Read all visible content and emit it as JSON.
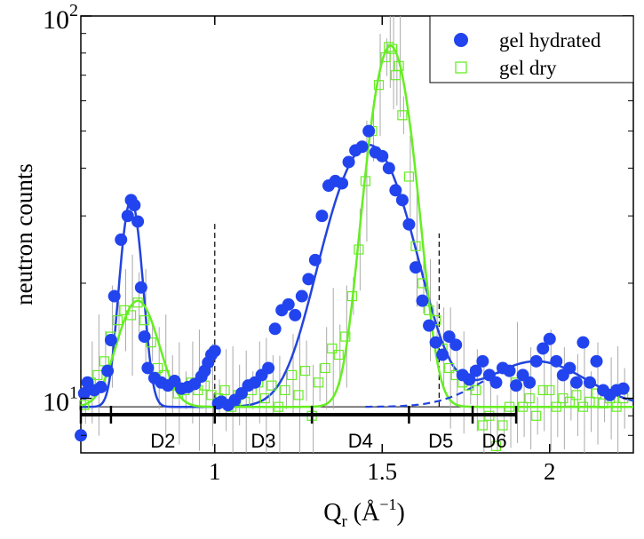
{
  "chart_data": {
    "type": "scatter",
    "title": "",
    "xlabel": "Q",
    "xlabel_sub": "r",
    "xlabel_unit_open": " (Å",
    "xlabel_unit_exp": "−1",
    "xlabel_unit_close": ")",
    "ylabel": "neutron counts",
    "x_scale": "linear",
    "y_scale": "log",
    "xlim": [
      0.6,
      2.25
    ],
    "ylim": [
      7.2,
      100
    ],
    "x_ticks": [
      {
        "value": 1,
        "label": "1"
      },
      {
        "value": 1.5,
        "label": "1.5"
      },
      {
        "value": 2,
        "label": "2"
      }
    ],
    "y_ticks": [
      {
        "value": 10,
        "base": "10",
        "exp": "1"
      },
      {
        "value": 100,
        "base": "10",
        "exp": "2"
      }
    ],
    "legend_position": "top-right",
    "series": [
      {
        "name": "gel hydrated",
        "marker": "filled-circle",
        "color": "#2244ee",
        "points": [
          [
            0.6,
            8.0
          ],
          [
            0.61,
            10.3
          ],
          [
            0.62,
            11.0
          ],
          [
            0.64,
            10.5
          ],
          [
            0.66,
            10.7
          ],
          [
            0.68,
            11.8
          ],
          [
            0.69,
            14.2
          ],
          [
            0.7,
            18.5
          ],
          [
            0.72,
            26.0
          ],
          [
            0.74,
            30.0
          ],
          [
            0.75,
            33.0
          ],
          [
            0.76,
            32.0
          ],
          [
            0.77,
            29.0
          ],
          [
            0.78,
            19.5
          ],
          [
            0.79,
            14.5
          ],
          [
            0.8,
            12.0
          ],
          [
            0.82,
            11.3
          ],
          [
            0.84,
            11.0
          ],
          [
            0.86,
            10.8
          ],
          [
            0.88,
            11.1
          ],
          [
            0.9,
            10.6
          ],
          [
            0.92,
            10.7
          ],
          [
            0.94,
            10.9
          ],
          [
            0.96,
            11.4
          ],
          [
            0.97,
            11.8
          ],
          [
            0.98,
            12.4
          ],
          [
            0.99,
            13.0
          ],
          [
            1.0,
            13.3
          ],
          [
            1.01,
            9.7
          ],
          [
            1.02,
            9.8
          ],
          [
            1.04,
            9.6
          ],
          [
            1.06,
            9.9
          ],
          [
            1.08,
            10.3
          ],
          [
            1.1,
            10.8
          ],
          [
            1.12,
            11.0
          ],
          [
            1.14,
            11.5
          ],
          [
            1.16,
            12.0
          ],
          [
            1.18,
            15.2
          ],
          [
            1.2,
            17.0
          ],
          [
            1.22,
            17.6
          ],
          [
            1.24,
            16.5
          ],
          [
            1.26,
            18.5
          ],
          [
            1.28,
            20.5
          ],
          [
            1.3,
            23.0
          ],
          [
            1.32,
            30.0
          ],
          [
            1.34,
            36.0
          ],
          [
            1.36,
            37.0
          ],
          [
            1.38,
            36.5
          ],
          [
            1.4,
            41.5
          ],
          [
            1.42,
            44.5
          ],
          [
            1.44,
            45.5
          ],
          [
            1.46,
            50.0
          ],
          [
            1.48,
            44.0
          ],
          [
            1.5,
            43.0
          ],
          [
            1.52,
            40.0
          ],
          [
            1.54,
            35.0
          ],
          [
            1.56,
            33.0
          ],
          [
            1.58,
            28.5
          ],
          [
            1.6,
            22.0
          ],
          [
            1.62,
            18.0
          ],
          [
            1.64,
            15.5
          ],
          [
            1.66,
            14.0
          ],
          [
            1.68,
            13.0
          ],
          [
            1.7,
            14.5
          ],
          [
            1.72,
            13.8
          ],
          [
            1.74,
            11.5
          ],
          [
            1.76,
            11.2
          ],
          [
            1.78,
            11.8
          ],
          [
            1.8,
            12.5
          ],
          [
            1.82,
            11.5
          ],
          [
            1.84,
            11.0
          ],
          [
            1.86,
            12.0
          ],
          [
            1.88,
            11.8
          ],
          [
            1.9,
            10.8
          ],
          [
            1.92,
            11.5
          ],
          [
            1.94,
            11.0
          ],
          [
            1.96,
            12.5
          ],
          [
            1.98,
            13.5
          ],
          [
            2.0,
            14.3
          ],
          [
            2.02,
            12.5
          ],
          [
            2.04,
            11.5
          ],
          [
            2.06,
            12.0
          ],
          [
            2.08,
            11.0
          ],
          [
            2.1,
            14.0
          ],
          [
            2.12,
            11.0
          ],
          [
            2.14,
            12.5
          ],
          [
            2.16,
            10.5
          ],
          [
            2.18,
            10.2
          ],
          [
            2.2,
            10.5
          ],
          [
            2.22,
            10.6
          ]
        ]
      },
      {
        "name": "gel dry",
        "marker": "open-square",
        "color": "#66ee22",
        "points": [
          [
            0.61,
            9.6
          ],
          [
            0.63,
            11.0
          ],
          [
            0.65,
            11.5
          ],
          [
            0.67,
            12.5
          ],
          [
            0.69,
            14.5
          ],
          [
            0.71,
            16.0
          ],
          [
            0.73,
            17.0
          ],
          [
            0.75,
            16.5
          ],
          [
            0.77,
            17.8
          ],
          [
            0.79,
            16.0
          ],
          [
            0.81,
            14.0
          ],
          [
            0.83,
            12.0
          ],
          [
            0.85,
            11.5
          ],
          [
            0.87,
            10.8
          ],
          [
            0.89,
            10.3
          ],
          [
            0.91,
            10.5
          ],
          [
            0.93,
            11.0
          ],
          [
            0.95,
            10.5
          ],
          [
            0.97,
            10.8
          ],
          [
            0.99,
            10.2
          ],
          [
            1.01,
            10.0
          ],
          [
            1.03,
            10.5
          ],
          [
            1.05,
            9.5
          ],
          [
            1.07,
            10.2
          ],
          [
            1.09,
            9.8
          ],
          [
            1.11,
            10.5
          ],
          [
            1.13,
            11.0
          ],
          [
            1.15,
            10.0
          ],
          [
            1.17,
            10.8
          ],
          [
            1.19,
            9.5
          ],
          [
            1.21,
            10.5
          ],
          [
            1.23,
            11.5
          ],
          [
            1.25,
            10.2
          ],
          [
            1.27,
            11.8
          ],
          [
            1.29,
            9.0
          ],
          [
            1.31,
            11.0
          ],
          [
            1.33,
            12.0
          ],
          [
            1.35,
            13.5
          ],
          [
            1.37,
            13.0
          ],
          [
            1.39,
            14.5
          ],
          [
            1.41,
            18.5
          ],
          [
            1.43,
            24.5
          ],
          [
            1.45,
            37.0
          ],
          [
            1.47,
            50.0
          ],
          [
            1.49,
            66.0
          ],
          [
            1.51,
            78.0
          ],
          [
            1.52,
            83.0
          ],
          [
            1.53,
            82.0
          ],
          [
            1.54,
            70.0
          ],
          [
            1.55,
            74.0
          ],
          [
            1.56,
            55.0
          ],
          [
            1.58,
            38.0
          ],
          [
            1.6,
            25.0
          ],
          [
            1.62,
            20.0
          ],
          [
            1.64,
            17.0
          ],
          [
            1.66,
            16.0
          ],
          [
            1.68,
            13.5
          ],
          [
            1.7,
            12.0
          ],
          [
            1.72,
            11.5
          ],
          [
            1.74,
            11.0
          ],
          [
            1.76,
            10.8
          ],
          [
            1.78,
            10.5
          ],
          [
            1.8,
            8.5
          ],
          [
            1.82,
            9.0
          ],
          [
            1.84,
            7.5
          ],
          [
            1.86,
            8.5
          ],
          [
            1.88,
            9.5
          ],
          [
            1.9,
            11.0
          ],
          [
            1.92,
            9.5
          ],
          [
            1.94,
            10.0
          ],
          [
            1.96,
            9.0
          ],
          [
            1.98,
            10.5
          ],
          [
            2.0,
            10.5
          ],
          [
            2.02,
            9.5
          ],
          [
            2.04,
            10.0
          ],
          [
            2.06,
            9.8
          ],
          [
            2.08,
            10.2
          ],
          [
            2.1,
            9.5
          ],
          [
            2.12,
            9.8
          ],
          [
            2.14,
            10.3
          ],
          [
            2.16,
            9.7
          ],
          [
            2.18,
            10.0
          ],
          [
            2.2,
            9.5
          ],
          [
            2.22,
            10.0
          ]
        ]
      }
    ],
    "fits": [
      {
        "name": "gel hydrated fit",
        "color": "#2244dd",
        "baseline": 9.5,
        "peaks": [
          {
            "center": 0.75,
            "amplitude": 23.5,
            "sigma": 0.028
          },
          {
            "center": 1.46,
            "amplitude": 36.5,
            "sigma": 0.105
          },
          {
            "center": 1.96,
            "amplitude": 3.0,
            "sigma": 0.14
          }
        ]
      },
      {
        "name": "gel dry fit",
        "color": "#66ee22",
        "baseline": 9.5,
        "peaks": [
          {
            "center": 0.77,
            "amplitude": 8.5,
            "sigma": 0.055
          },
          {
            "center": 1.525,
            "amplitude": 74.0,
            "sigma": 0.055
          }
        ]
      }
    ],
    "baseline_line": {
      "y": 9.5,
      "x_end": 1.67
    },
    "dashed_verticals": [
      {
        "x": 1.0,
        "y_top": 29.0
      },
      {
        "x": 1.67,
        "y_top": 27.0
      }
    ],
    "dashed_background": {
      "color": "#2244dd",
      "from": 1.45,
      "center": 1.96,
      "amplitude": 3.0,
      "sigma": 0.14
    },
    "regions": {
      "ticks": [
        0.6,
        0.69,
        1.0,
        1.29,
        1.58,
        1.77,
        1.9
      ],
      "labels": [
        {
          "text": "D2",
          "x": 0.845
        },
        {
          "text": "D3",
          "x": 1.145
        },
        {
          "text": "D4",
          "x": 1.435
        },
        {
          "text": "D5",
          "x": 1.675
        },
        {
          "text": "D6",
          "x": 1.835
        }
      ]
    }
  }
}
